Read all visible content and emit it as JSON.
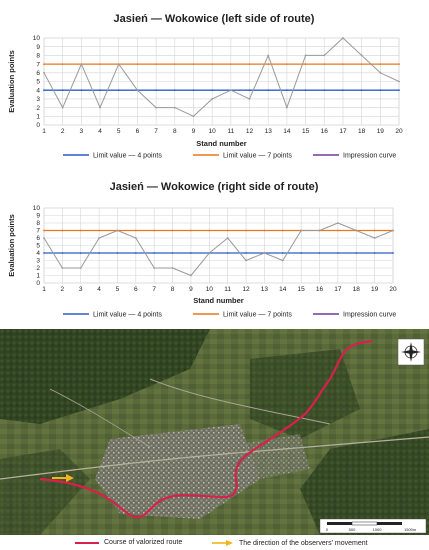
{
  "chart_data": [
    {
      "type": "line",
      "title": "Jasień — Wokowice (left side of route)",
      "xlabel": "Stand number",
      "ylabel": "Evaluation points",
      "x": [
        1,
        2,
        3,
        4,
        5,
        6,
        7,
        8,
        9,
        10,
        11,
        12,
        13,
        14,
        15,
        16,
        17,
        18,
        19,
        20
      ],
      "ylim": [
        0,
        10
      ],
      "yticks": [
        0,
        1,
        2,
        3,
        4,
        5,
        6,
        7,
        8,
        9,
        10
      ],
      "grid": true,
      "legend_position": "bottom",
      "series": [
        {
          "name": "Limit value — 4 points",
          "color": "#2b5fc4",
          "values": [
            4,
            4,
            4,
            4,
            4,
            4,
            4,
            4,
            4,
            4,
            4,
            4,
            4,
            4,
            4,
            4,
            4,
            4,
            4,
            4
          ]
        },
        {
          "name": "Limit value — 7 points",
          "color": "#e8771c",
          "values": [
            7,
            7,
            7,
            7,
            7,
            7,
            7,
            7,
            7,
            7,
            7,
            7,
            7,
            7,
            7,
            7,
            7,
            7,
            7,
            7
          ]
        },
        {
          "name": "Impression curve",
          "color": "#999999",
          "legend_color": "#6e3a96",
          "values": [
            6,
            2,
            7,
            2,
            7,
            4,
            2,
            2,
            1,
            3,
            4,
            3,
            8,
            2,
            8,
            8,
            10,
            8,
            6,
            5
          ]
        }
      ]
    },
    {
      "type": "line",
      "title": "Jasień — Wokowice (right side of route)",
      "xlabel": "Stand number",
      "ylabel": "Evaluation points",
      "x": [
        1,
        2,
        3,
        4,
        5,
        6,
        7,
        8,
        9,
        10,
        11,
        12,
        13,
        14,
        15,
        16,
        17,
        18,
        19,
        20
      ],
      "ylim": [
        0,
        10
      ],
      "yticks": [
        0,
        1,
        2,
        3,
        4,
        5,
        6,
        7,
        8,
        9,
        10
      ],
      "grid": true,
      "legend_position": "bottom",
      "series": [
        {
          "name": "Limit value — 4 points",
          "color": "#2b5fc4",
          "values": [
            4,
            4,
            4,
            4,
            4,
            4,
            4,
            4,
            4,
            4,
            4,
            4,
            4,
            4,
            4,
            4,
            4,
            4,
            4,
            4
          ]
        },
        {
          "name": "Limit value — 7 points",
          "color": "#e8771c",
          "values": [
            7,
            7,
            7,
            7,
            7,
            7,
            7,
            7,
            7,
            7,
            7,
            7,
            7,
            7,
            7,
            7,
            7,
            7,
            7,
            7
          ]
        },
        {
          "name": "Impression curve",
          "color": "#999999",
          "legend_color": "#6e3a96",
          "values": [
            6,
            2,
            2,
            6,
            7,
            6,
            2,
            2,
            1,
            4,
            6,
            3,
            4,
            3,
            7,
            7,
            8,
            7,
            6,
            7
          ]
        }
      ]
    }
  ],
  "map": {
    "scale_labels": [
      "0",
      "500",
      "1000",
      "1500m"
    ],
    "legend": [
      {
        "label": "Course of valorized route",
        "color": "#d6214a"
      },
      {
        "label": "The direction of the observers' movement",
        "color": "#f2b51d"
      }
    ],
    "compass": "compass-rose"
  }
}
